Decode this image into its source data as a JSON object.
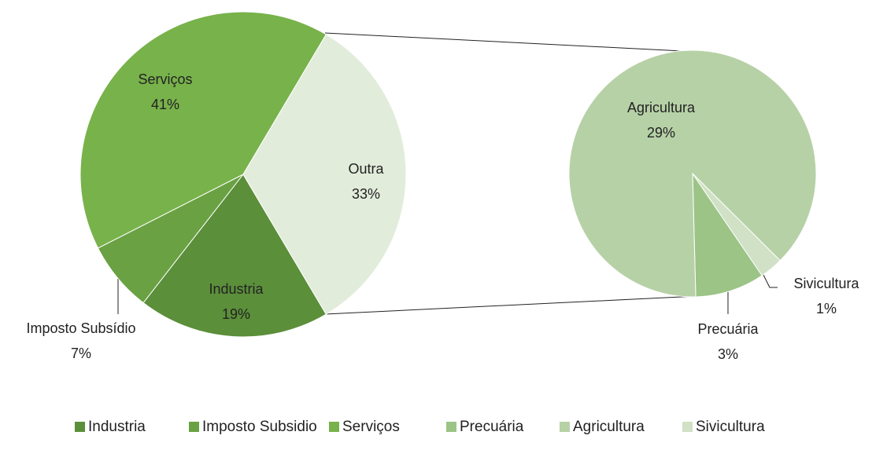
{
  "chart_data": {
    "type": "pie_of_pie",
    "main": {
      "categories": [
        "Industria",
        "Imposto Subsídio",
        "Serviços",
        "Outra"
      ],
      "values": [
        19,
        7,
        41,
        33
      ],
      "value_labels": [
        "19%",
        "7%",
        "41%",
        "33%"
      ],
      "colors": [
        "#5b8f3a",
        "#6aa143",
        "#78b24b",
        "#e2ecdb"
      ]
    },
    "secondary": {
      "categories": [
        "Precuária",
        "Agricultura",
        "Sivicultura"
      ],
      "values": [
        3,
        29,
        1
      ],
      "value_labels": [
        "3%",
        "29%",
        "1%"
      ],
      "colors": [
        "#9cc486",
        "#b6d1a6",
        "#d0e1c5"
      ]
    },
    "legend": [
      "Industria",
      "Imposto Subsidio",
      "Serviços",
      "Precuária",
      "Agricultura",
      "Sivicultura"
    ],
    "legend_position": "bottom"
  }
}
